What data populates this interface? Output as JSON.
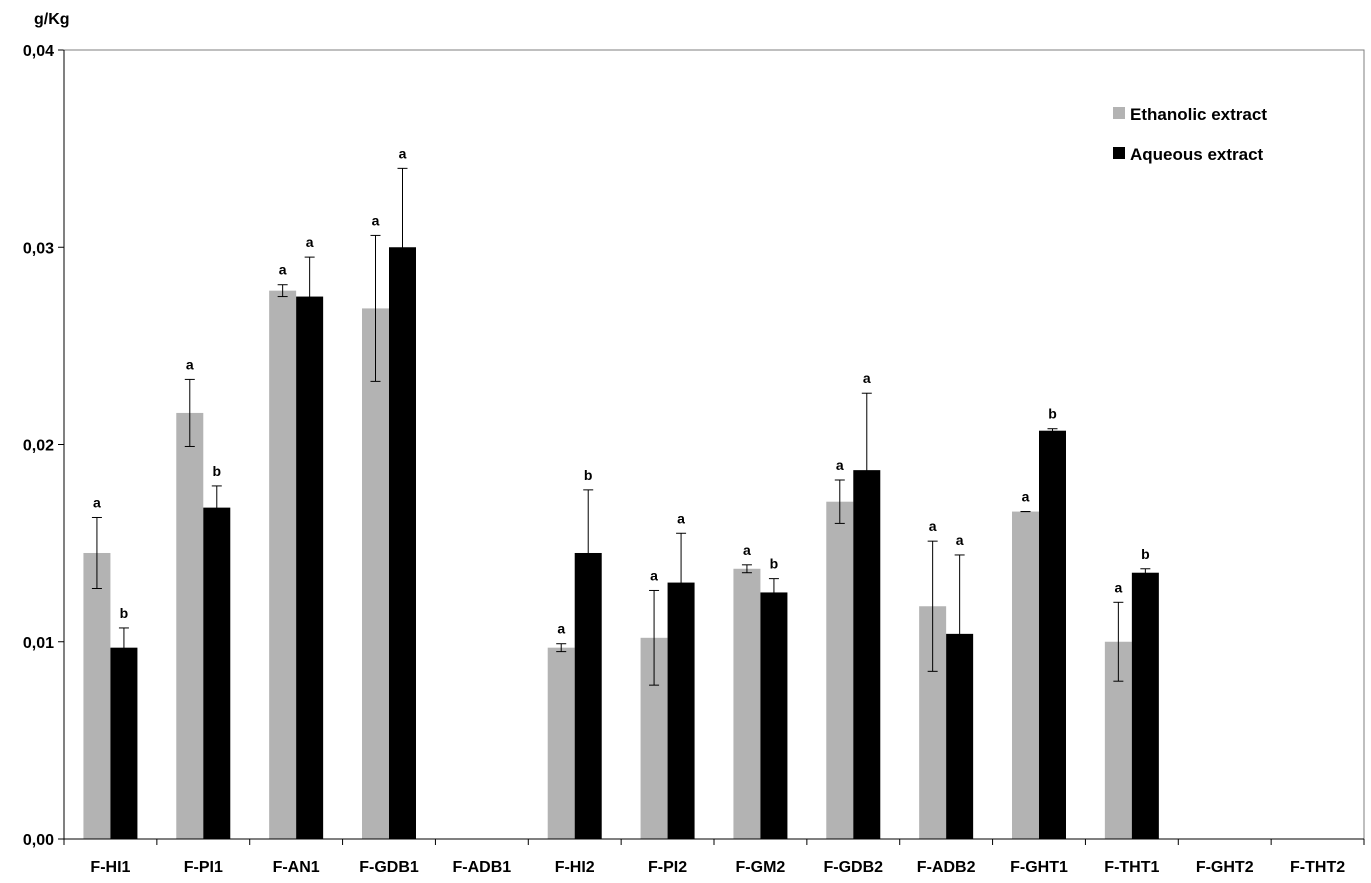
{
  "chart_data": {
    "type": "bar",
    "title": "",
    "ylabel": "g/Kg",
    "xlabel": "",
    "ylim": [
      0,
      0.04
    ],
    "yticks": [
      "0,00",
      "0,01",
      "0,02",
      "0,03",
      "0,04"
    ],
    "ytick_values": [
      0,
      0.01,
      0.02,
      0.03,
      0.04
    ],
    "grid": false,
    "legend_position": "top-right",
    "categories": [
      "F-HI1",
      "F-PI1",
      "F-AN1",
      "F-GDB1",
      "F-ADB1",
      "F-HI2",
      "F-PI2",
      "F-GM2",
      "F-GDB2",
      "F-ADB2",
      "F-GHT1",
      "F-THT1",
      "F-GHT2",
      "F-THT2"
    ],
    "series": [
      {
        "name": "Ethanolic extract",
        "color": "#b3b3b3",
        "values": [
          0.0145,
          0.0216,
          0.0278,
          0.0269,
          null,
          0.0097,
          0.0102,
          0.0137,
          0.0171,
          0.0118,
          0.0166,
          0.01,
          null,
          null
        ],
        "errors": [
          0.0018,
          0.0017,
          0.0003,
          0.0037,
          null,
          0.0002,
          0.0024,
          0.0002,
          0.0011,
          0.0033,
          0.0,
          0.002,
          null,
          null
        ],
        "sig": [
          "a",
          "a",
          "a",
          "a",
          "",
          "a",
          "a",
          "a",
          "a",
          "a",
          "a",
          "a",
          "",
          ""
        ]
      },
      {
        "name": "Aqueous extract",
        "color": "#000000",
        "values": [
          0.0097,
          0.0168,
          0.0275,
          0.03,
          null,
          0.0145,
          0.013,
          0.0125,
          0.0187,
          0.0104,
          0.0207,
          0.0135,
          null,
          null
        ],
        "errors": [
          0.001,
          0.0011,
          0.002,
          0.004,
          null,
          0.0032,
          0.0025,
          0.0007,
          0.0039,
          0.004,
          0.0001,
          0.0002,
          null,
          null
        ],
        "sig": [
          "b",
          "b",
          "a",
          "a",
          "",
          "b",
          "a",
          "b",
          "a",
          "a",
          "b",
          "b",
          "",
          ""
        ]
      }
    ]
  }
}
